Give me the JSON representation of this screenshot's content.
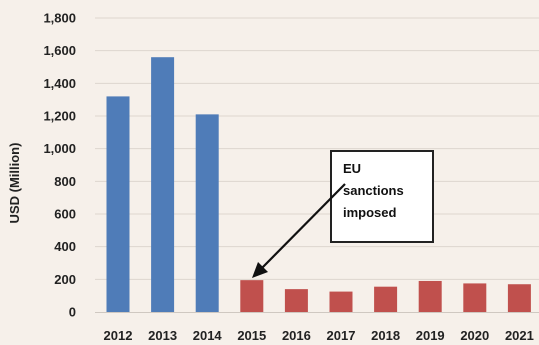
{
  "chart_data": {
    "type": "bar",
    "ylabel": "USD (Million)",
    "ylim": [
      0,
      1800
    ],
    "yticks": [
      0,
      200,
      400,
      600,
      800,
      1000,
      1200,
      1400,
      1600,
      1800
    ],
    "ytick_labels": [
      "0",
      "200",
      "400",
      "600",
      "800",
      "1,000",
      "1,200",
      "1,400",
      "1,600",
      "1,800"
    ],
    "grid": true,
    "categories": [
      "2012",
      "2013",
      "2014",
      "2015",
      "2016",
      "2017",
      "2018",
      "2019",
      "2020",
      "2021"
    ],
    "values": [
      1320,
      1560,
      1210,
      195,
      140,
      125,
      155,
      190,
      175,
      170
    ],
    "colors": [
      "#4f7cb8",
      "#4f7cb8",
      "#4f7cb8",
      "#c0504d",
      "#c0504d",
      "#c0504d",
      "#c0504d",
      "#c0504d",
      "#c0504d",
      "#c0504d"
    ],
    "annotation": {
      "lines": [
        "EU",
        "sanctions",
        "imposed"
      ],
      "points_to": "2015"
    }
  }
}
